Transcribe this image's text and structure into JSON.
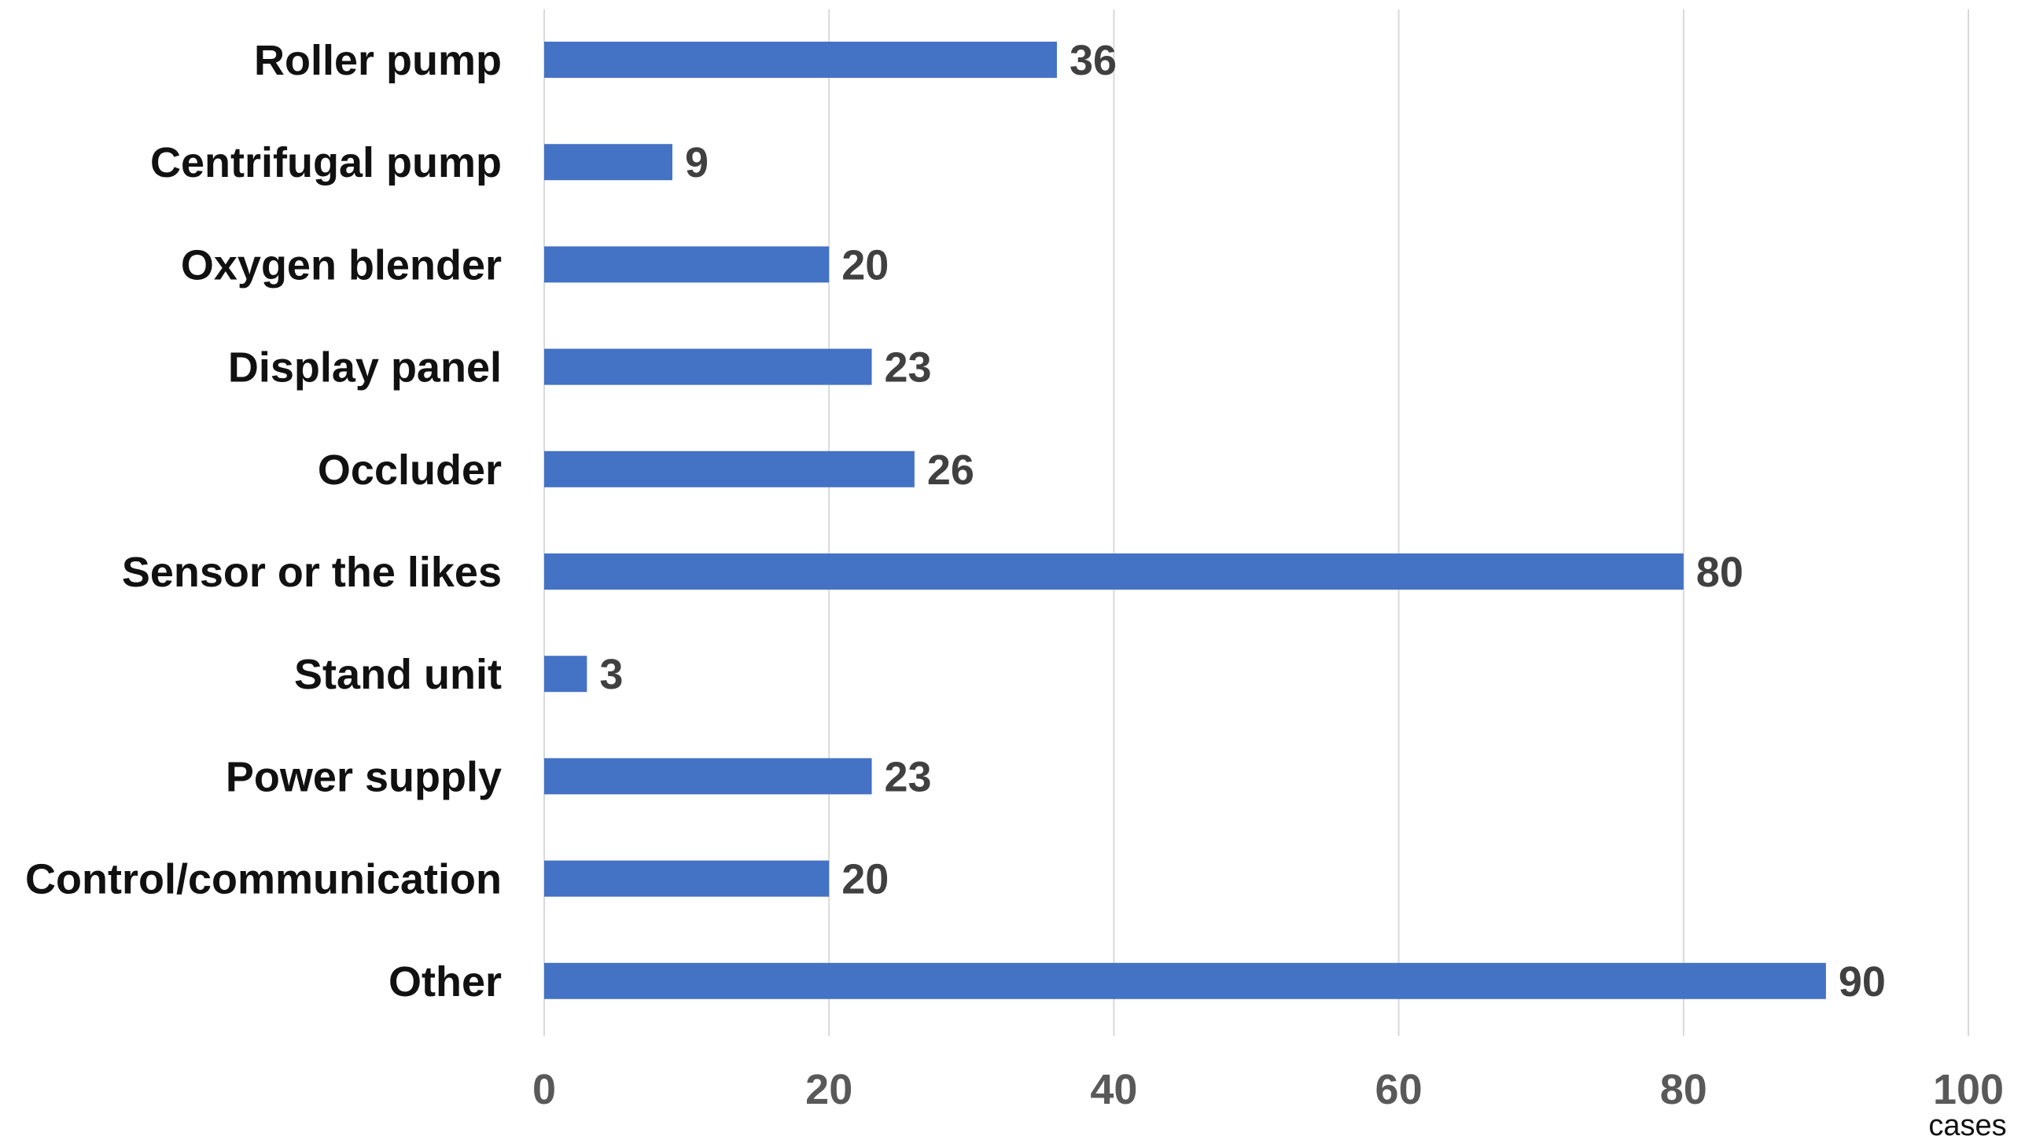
{
  "chart_data": {
    "type": "bar",
    "orientation": "horizontal",
    "categories": [
      "Roller pump",
      "Centrifugal pump",
      "Oxygen blender",
      "Display panel",
      "Occluder",
      "Sensor or the likes",
      "Stand unit",
      "Power supply",
      "Control/communication",
      "Other"
    ],
    "values": [
      36,
      9,
      20,
      23,
      26,
      80,
      3,
      23,
      20,
      90
    ],
    "x_unit": "cases",
    "xlim": [
      0,
      100
    ],
    "x_ticks": [
      0,
      20,
      40,
      60,
      80,
      100
    ],
    "grid": true,
    "bar_color": "#4472C4",
    "data_labels": true
  }
}
